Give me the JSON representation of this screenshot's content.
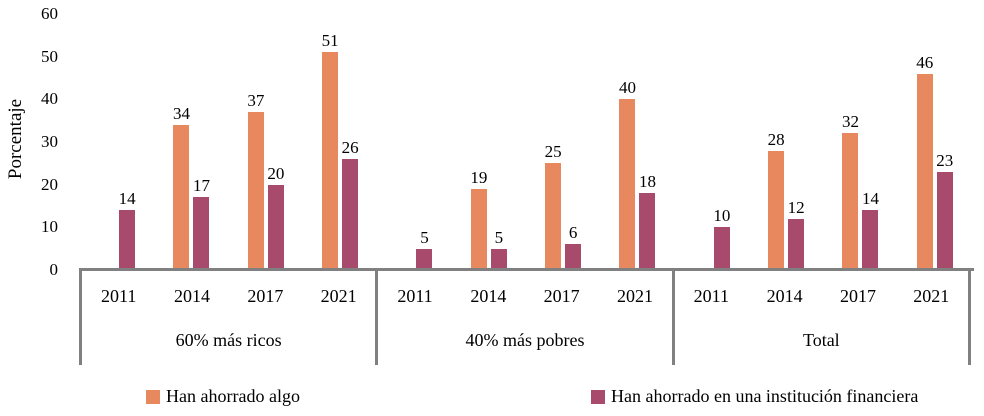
{
  "chart_data": {
    "type": "bar",
    "title": "",
    "ylabel": "Porcentaje",
    "xlabel": "",
    "ylim": [
      0,
      60
    ],
    "yticks": [
      0,
      10,
      20,
      30,
      40,
      50,
      60
    ],
    "grid": false,
    "legend_position": "bottom",
    "axis_color": "#808080",
    "year_labels": [
      "2011",
      "2014",
      "2017",
      "2021"
    ],
    "groups": [
      "60% más ricos",
      "40% más pobres",
      "Total"
    ],
    "series": [
      {
        "name": "Han ahorrado algo",
        "color": "#E8885E",
        "values": [
          [
            null,
            34,
            37,
            51
          ],
          [
            null,
            19,
            25,
            40
          ],
          [
            null,
            28,
            32,
            46
          ]
        ]
      },
      {
        "name": "Han ahorrado en una institución financiera",
        "color": "#A84A6B",
        "values": [
          [
            14,
            17,
            20,
            26
          ],
          [
            5,
            5,
            6,
            18
          ],
          [
            10,
            12,
            14,
            23
          ]
        ]
      }
    ]
  }
}
